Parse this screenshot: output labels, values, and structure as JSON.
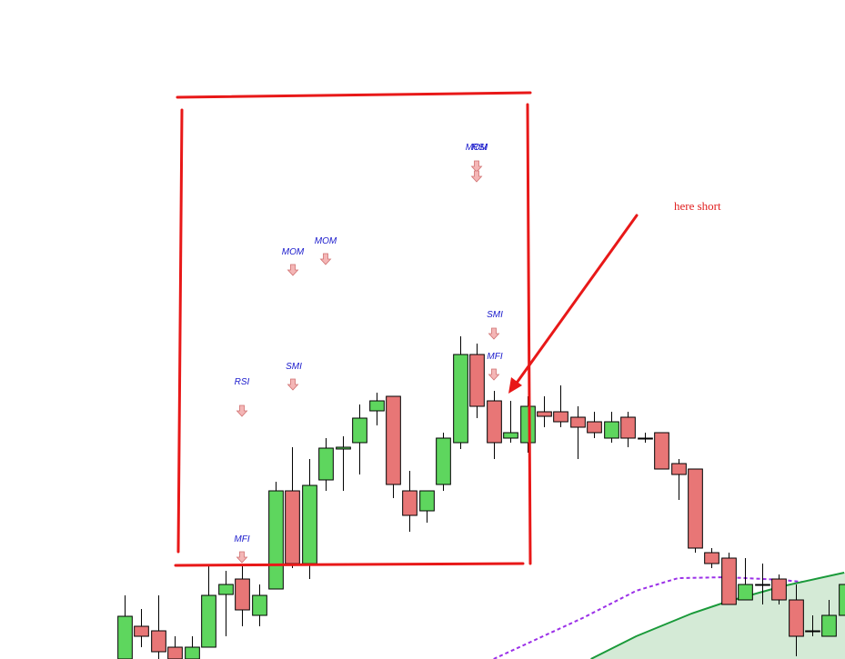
{
  "chart_data": {
    "type": "candlestick",
    "xlim": [
      -7.43,
      42.95
    ],
    "ylim": [
      0,
      725
    ],
    "up_color": "#5ed65e",
    "down_color": "#e87676",
    "x": [
      0,
      1,
      2,
      3,
      4,
      5,
      6,
      7,
      8,
      9,
      10,
      11,
      12,
      13,
      14,
      15,
      16,
      17,
      18,
      19,
      20,
      21,
      22,
      23,
      24,
      25,
      26,
      27,
      28,
      29,
      30,
      31,
      32,
      33,
      34,
      35,
      36,
      37,
      38,
      39,
      40,
      41,
      42,
      43
    ],
    "open": [
      0,
      36,
      31,
      13,
      0,
      13,
      71,
      88,
      48,
      77,
      185,
      105,
      197,
      231,
      238,
      273,
      289,
      185,
      163,
      192,
      238,
      335,
      284,
      243,
      238,
      272,
      272,
      266,
      261,
      243,
      266,
      243,
      249,
      215,
      209,
      117,
      111,
      65,
      82,
      88,
      65,
      31,
      25,
      48
    ],
    "high": [
      70,
      55,
      70,
      25,
      25,
      103,
      97,
      103,
      82,
      195,
      233,
      220,
      243,
      245,
      280,
      293,
      289,
      207,
      185,
      249,
      355,
      347,
      295,
      284,
      289,
      289,
      301,
      278,
      272,
      272,
      272,
      249,
      249,
      220,
      209,
      122,
      117,
      111,
      105,
      93,
      82,
      48,
      65,
      88
    ],
    "low": [
      0,
      13,
      0,
      0,
      0,
      13,
      25,
      36,
      36,
      77,
      100,
      88,
      185,
      185,
      203,
      257,
      177,
      140,
      150,
      185,
      231,
      265,
      220,
      238,
      227,
      255,
      255,
      220,
      243,
      238,
      233,
      238,
      209,
      175,
      117,
      100,
      60,
      65,
      60,
      60,
      3,
      25,
      25,
      48
    ],
    "close": [
      47,
      25,
      8,
      0,
      13,
      70,
      82,
      54,
      70,
      185,
      105,
      191,
      232,
      233,
      265,
      284,
      192,
      158,
      185,
      243,
      335,
      278,
      238,
      249,
      278,
      267,
      261,
      255,
      249,
      261,
      243,
      243,
      209,
      203,
      122,
      105,
      60,
      82,
      82,
      65,
      25,
      31,
      48,
      82
    ],
    "lines": [
      {
        "color": "#9b30e8",
        "dashed": true,
        "x": [
          22.0,
          27.3,
          30.5,
          33.0,
          35.9,
          39.2,
          42.9
        ],
        "values": [
          0,
          45,
          75,
          89,
          90,
          87,
          80
        ]
      },
      {
        "color": "#1a9a3a",
        "dashed": false,
        "fill": "#d4ead6",
        "x": [
          27.8,
          30.5,
          33.8,
          35.9,
          39.2,
          42.9
        ],
        "values": [
          0,
          25,
          50,
          63,
          80,
          95
        ]
      }
    ]
  },
  "annotations": {
    "note": "here short",
    "signals": [
      "MFI",
      "RSI",
      "SMI",
      "MOM",
      "MOM",
      "MOM",
      "RSI",
      "SMI",
      "MFI"
    ]
  }
}
